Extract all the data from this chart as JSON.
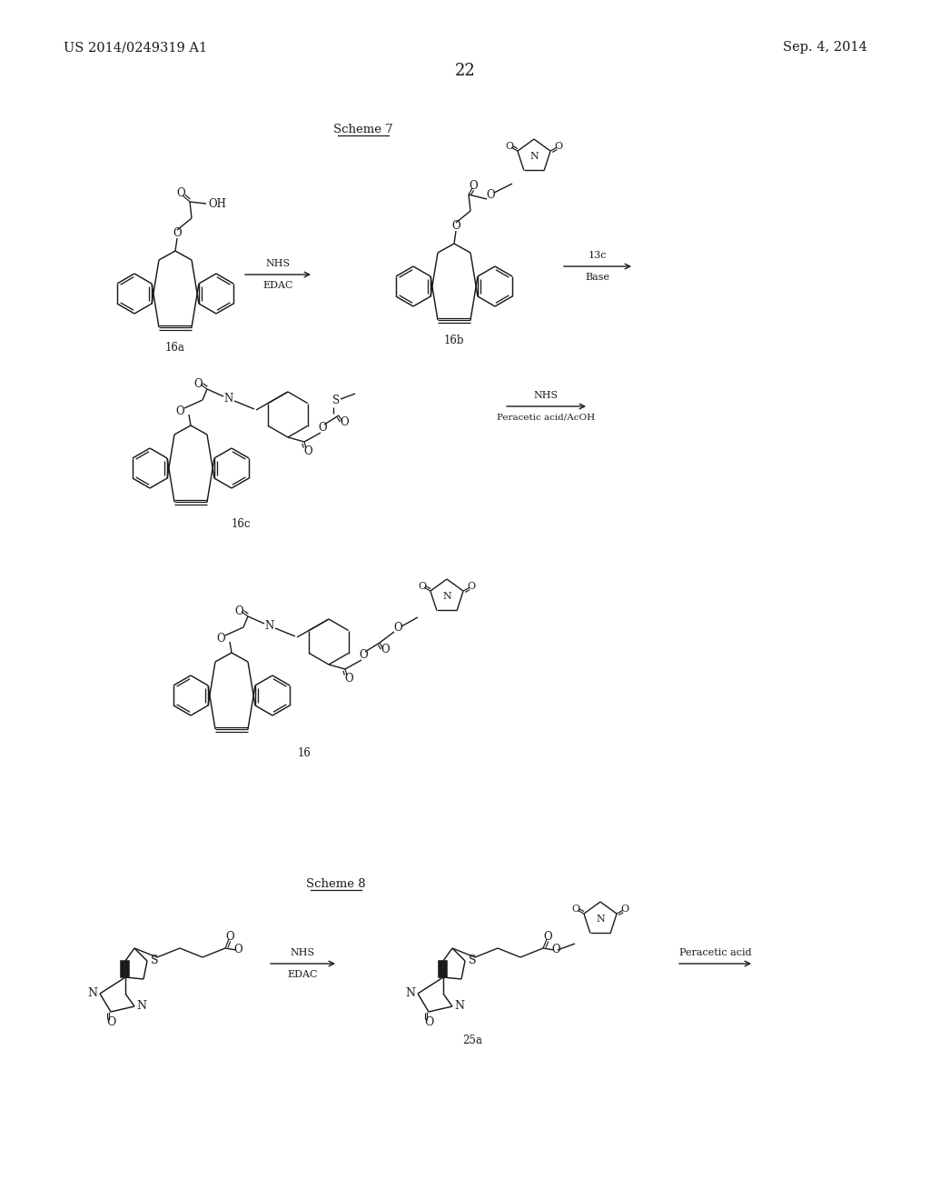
{
  "bg_color": "#ffffff",
  "text_color": "#1a1a1a",
  "page_number": "22",
  "left_header": "US 2014/0249319 A1",
  "right_header": "Sep. 4, 2014",
  "scheme7_label": "Scheme 7",
  "scheme8_label": "Scheme 8",
  "label_16a": "16a",
  "label_16b": "16b",
  "label_16c": "16c",
  "label_16": "16",
  "label_25a": "25a"
}
